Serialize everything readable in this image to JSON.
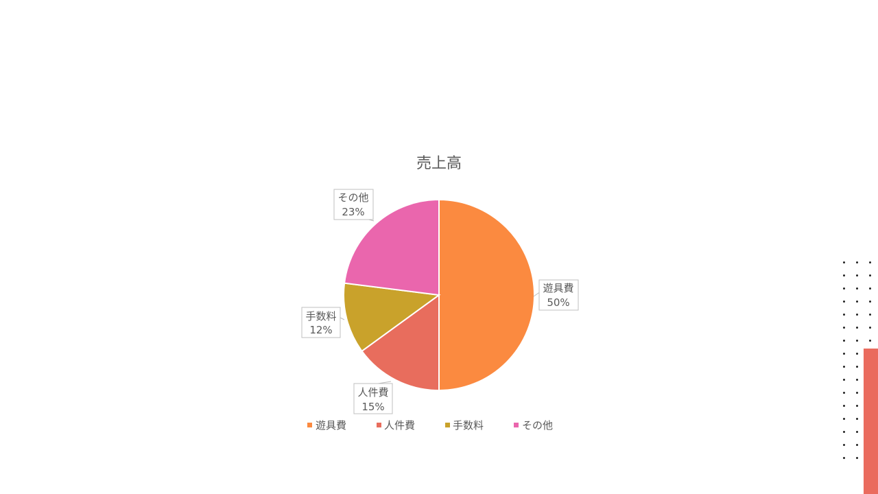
{
  "chart_data": {
    "type": "pie",
    "title": "売上高",
    "categories": [
      "遊具費",
      "人件費",
      "手数料",
      "その他"
    ],
    "values": [
      50,
      15,
      12,
      23
    ],
    "data_labels": [
      "50%",
      "15%",
      "12%",
      "23%"
    ],
    "colors": [
      "#fb8a40",
      "#e86d5d",
      "#c9a22b",
      "#ea66ad"
    ],
    "legend_position": "bottom",
    "start_angle_deg": 0,
    "direction": "clockwise"
  },
  "decoration": {
    "accent_color": "#ea6b5e"
  }
}
